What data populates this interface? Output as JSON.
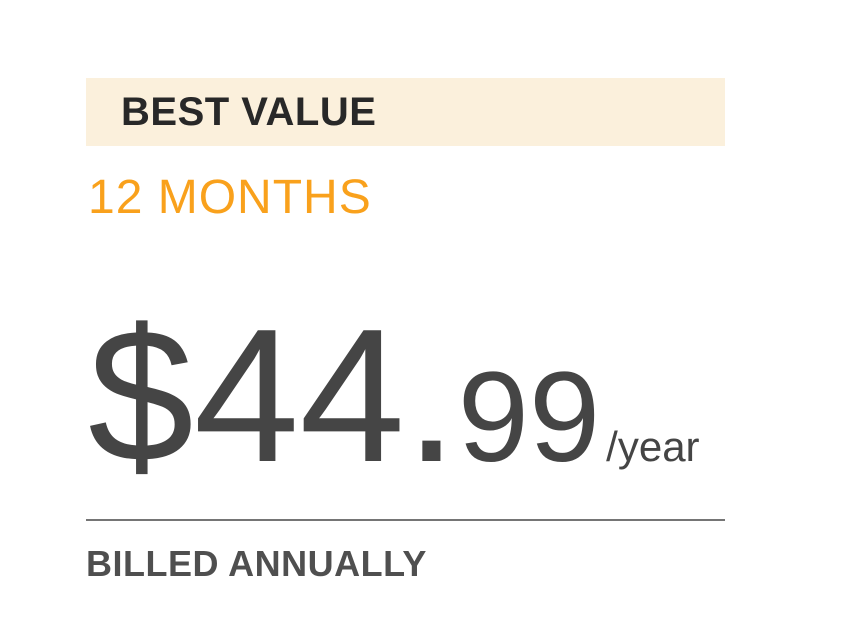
{
  "card": {
    "badge_label": "BEST VALUE",
    "plan_name": "12 MONTHS",
    "price": {
      "main": "$44.",
      "cents": "99",
      "period": "/year"
    },
    "billing_note": "BILLED ANNUALLY"
  },
  "colors": {
    "page_background": "#FFFFFF",
    "badge_background": "#FBF0DC",
    "badge_text": "#282828",
    "plan_accent_orange": "#F9A11C",
    "price_text": "#454545",
    "divider": "#757575",
    "billing_text": "#4F4F4F"
  }
}
